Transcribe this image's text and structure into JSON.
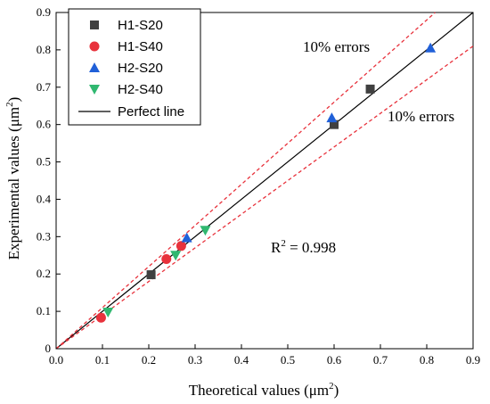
{
  "chart_data": {
    "type": "scatter",
    "xlabel": "Theoretical values (μm",
    "xlabel_sup": "2",
    "xlabel_end": ")",
    "ylabel": "Experimental values (μm",
    "ylabel_sup": "2",
    "ylabel_end": ")",
    "xlim": [
      0,
      0.9
    ],
    "ylim": [
      0,
      0.9
    ],
    "xticks": [
      "0.0",
      "0.1",
      "0.2",
      "0.3",
      "0.4",
      "0.5",
      "0.6",
      "0.7",
      "0.8",
      "0.9"
    ],
    "yticks": [
      "0",
      "0.1",
      "0.2",
      "0.3",
      "0.4",
      "0.5",
      "0.6",
      "0.7",
      "0.8",
      "0.9"
    ],
    "legend_position": "top-left",
    "series": [
      {
        "name": "H1-S20",
        "marker": "square",
        "color": "#404040",
        "points": [
          [
            0.205,
            0.198
          ],
          [
            0.6,
            0.6
          ],
          [
            0.678,
            0.695
          ]
        ]
      },
      {
        "name": "H1-S40",
        "marker": "circle",
        "color": "#e8323c",
        "points": [
          [
            0.097,
            0.083
          ],
          [
            0.238,
            0.24
          ],
          [
            0.27,
            0.275
          ]
        ]
      },
      {
        "name": "H2-S20",
        "marker": "triangle-up",
        "color": "#2060d8",
        "points": [
          [
            0.282,
            0.297
          ],
          [
            0.595,
            0.618
          ],
          [
            0.808,
            0.805
          ]
        ]
      },
      {
        "name": "H2-S40",
        "marker": "triangle-down",
        "color": "#30b870",
        "points": [
          [
            0.112,
            0.098
          ],
          [
            0.258,
            0.25
          ],
          [
            0.322,
            0.317
          ]
        ]
      }
    ],
    "reference_lines": {
      "perfect_line_label": "Perfect line",
      "perfect_line_color": "#000000",
      "error_band_color": "#e8323c",
      "error_fraction": 0.1
    },
    "annotations": {
      "upper_error": "10% errors",
      "lower_error": "10% errors",
      "r2_prefix": "R",
      "r2_sup": "2",
      "r2_value": " = 0.998"
    }
  }
}
